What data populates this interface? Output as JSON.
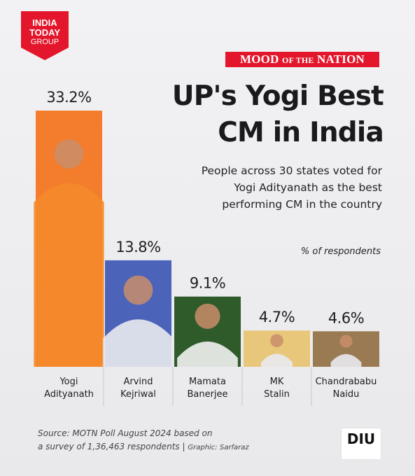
{
  "logo": {
    "line1": "INDIA",
    "line2": "TODAY",
    "line3": "GROUP",
    "color": "#e4162b"
  },
  "banner": {
    "mood": "MOOD",
    "of_the": "OF THE",
    "nation": "NATION"
  },
  "headline": {
    "line1": "UP's Yogi Best",
    "line2": "CM in India"
  },
  "subtitle": {
    "line1": "People across 30 states voted for",
    "line2": "Yogi Adityanath as the best",
    "line3": "performing CM in the country"
  },
  "unit_note": "% of respondents",
  "chart_data": {
    "type": "bar",
    "categories": [
      "Yogi Adityanath",
      "Arvind Kejriwal",
      "Mamata Banerjee",
      "MK Stalin",
      "Chandrababu Naidu"
    ],
    "category_lines": [
      [
        "Yogi",
        "Adityanath"
      ],
      [
        "Arvind",
        "Kejriwal"
      ],
      [
        "Mamata",
        "Banerjee"
      ],
      [
        "MK",
        "Stalin"
      ],
      [
        "Chandrababu",
        "Naidu"
      ]
    ],
    "values": [
      33.2,
      13.8,
      9.1,
      4.7,
      4.6
    ],
    "value_labels": [
      "33.2%",
      "13.8%",
      "9.1%",
      "4.7%",
      "4.6%"
    ],
    "bar_colors": [
      "#f37d2c",
      "#4b63b8",
      "#2f5a2a",
      "#e8c77a",
      "#9a7a52"
    ]
  },
  "source": {
    "line1": "Source: MOTN Poll August 2024 based on",
    "line2": "a survey of 1,36,463 respondents",
    "graphic": "Graphic: Sarfaraz"
  },
  "diu": {
    "label": "DIU"
  }
}
